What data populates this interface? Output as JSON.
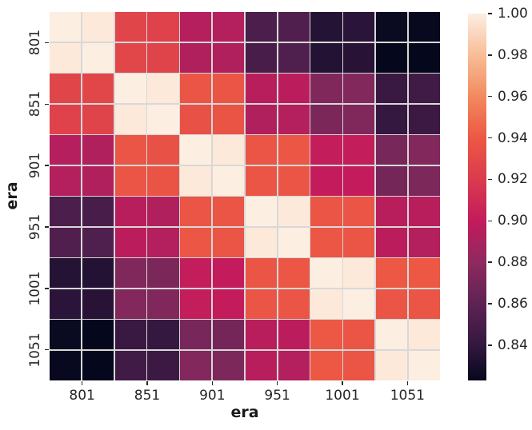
{
  "chart_data": {
    "type": "heatmap",
    "title": "",
    "xlabel": "era",
    "ylabel": "era",
    "x_tick_labels": [
      "801",
      "851",
      "901",
      "951",
      "1001",
      "1051"
    ],
    "y_tick_labels": [
      "801",
      "851",
      "901",
      "951",
      "1001",
      "1051"
    ],
    "row_count": 12,
    "col_count": 12,
    "matrix": [
      [
        1.0,
        0.998,
        0.927,
        0.925,
        0.895,
        0.894,
        0.851,
        0.854,
        0.835,
        0.837,
        0.825,
        0.824
      ],
      [
        0.998,
        1.0,
        0.928,
        0.926,
        0.893,
        0.893,
        0.85,
        0.853,
        0.834,
        0.836,
        0.823,
        0.823
      ],
      [
        0.927,
        0.928,
        1.0,
        0.998,
        0.938,
        0.938,
        0.896,
        0.897,
        0.874,
        0.875,
        0.843,
        0.846
      ],
      [
        0.925,
        0.926,
        0.998,
        1.0,
        0.936,
        0.937,
        0.893,
        0.894,
        0.872,
        0.874,
        0.841,
        0.844
      ],
      [
        0.895,
        0.893,
        0.938,
        0.936,
        1.0,
        0.998,
        0.938,
        0.939,
        0.901,
        0.901,
        0.871,
        0.875
      ],
      [
        0.894,
        0.893,
        0.938,
        0.937,
        0.998,
        1.0,
        0.938,
        0.938,
        0.9,
        0.9,
        0.869,
        0.873
      ],
      [
        0.851,
        0.85,
        0.896,
        0.893,
        0.938,
        0.938,
        1.0,
        0.998,
        0.938,
        0.938,
        0.896,
        0.896
      ],
      [
        0.854,
        0.853,
        0.897,
        0.894,
        0.939,
        0.938,
        0.998,
        1.0,
        0.939,
        0.938,
        0.897,
        0.894
      ],
      [
        0.835,
        0.834,
        0.874,
        0.872,
        0.901,
        0.9,
        0.938,
        0.939,
        1.0,
        0.998,
        0.94,
        0.94
      ],
      [
        0.837,
        0.836,
        0.875,
        0.874,
        0.901,
        0.9,
        0.938,
        0.938,
        0.998,
        1.0,
        0.938,
        0.938
      ],
      [
        0.825,
        0.823,
        0.843,
        0.841,
        0.871,
        0.869,
        0.896,
        0.897,
        0.94,
        0.938,
        1.0,
        0.998
      ],
      [
        0.824,
        0.823,
        0.846,
        0.844,
        0.875,
        0.873,
        0.896,
        0.894,
        0.94,
        0.938,
        0.998,
        1.0
      ]
    ],
    "vmin": 0.823,
    "vmax": 1.0,
    "grid": true,
    "grid_line_color": "#d8d8d8",
    "text_color": "#262626",
    "colormap_name": "rocket",
    "colormap_stops": [
      [
        0.823,
        "#05081c"
      ],
      [
        0.84,
        "#33173f"
      ],
      [
        0.86,
        "#5e2354"
      ],
      [
        0.88,
        "#8e2a5e"
      ],
      [
        0.9,
        "#c31b5c"
      ],
      [
        0.92,
        "#da3b4d"
      ],
      [
        0.94,
        "#ec5844"
      ],
      [
        0.96,
        "#f28a5e"
      ],
      [
        0.98,
        "#f8bd97"
      ],
      [
        1.0,
        "#fceee1"
      ]
    ],
    "colorbar": {
      "position": "right",
      "tick_labels": [
        "1.00",
        "0.98",
        "0.96",
        "0.94",
        "0.92",
        "0.90",
        "0.88",
        "0.86",
        "0.84"
      ],
      "tick_values": [
        1.0,
        0.98,
        0.96,
        0.94,
        0.92,
        0.9,
        0.88,
        0.86,
        0.84
      ]
    }
  }
}
